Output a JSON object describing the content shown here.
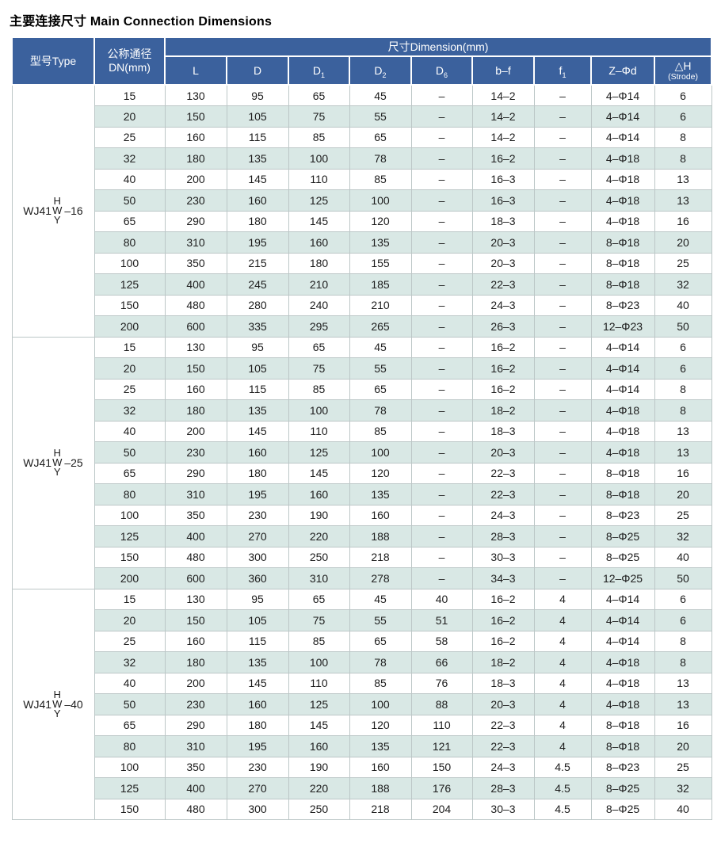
{
  "title": "主要连接尺寸 Main Connection Dimensions",
  "colors": {
    "header_bg": "#3b619d",
    "header_text": "#ffffff",
    "alt_row_bg": "#d9e8e5",
    "border": "#bcc7c7"
  },
  "table": {
    "header": {
      "type_label": "型号Type",
      "dn_label_line1": "公称通径",
      "dn_label_line2": "DN(mm)",
      "dimension_label": "尺寸Dimension(mm)",
      "columns": [
        {
          "label": "L"
        },
        {
          "label": "D"
        },
        {
          "label": "D",
          "sub": "1"
        },
        {
          "label": "D",
          "sub": "2"
        },
        {
          "label": "D",
          "sub": "6"
        },
        {
          "label": "b–f"
        },
        {
          "label": "f",
          "sub": "1"
        },
        {
          "label": "Z–Φd"
        },
        {
          "label": "△H",
          "note": "(Strode)"
        }
      ]
    },
    "groups": [
      {
        "model": {
          "prefix": "WJ41",
          "stack": [
            "H",
            "W",
            "Y"
          ],
          "suffix": "–16"
        },
        "rows": [
          [
            "15",
            "130",
            "95",
            "65",
            "45",
            "–",
            "14–2",
            "–",
            "4–Φ14",
            "6"
          ],
          [
            "20",
            "150",
            "105",
            "75",
            "55",
            "–",
            "14–2",
            "–",
            "4–Φ14",
            "6"
          ],
          [
            "25",
            "160",
            "115",
            "85",
            "65",
            "–",
            "14–2",
            "–",
            "4–Φ14",
            "8"
          ],
          [
            "32",
            "180",
            "135",
            "100",
            "78",
            "–",
            "16–2",
            "–",
            "4–Φ18",
            "8"
          ],
          [
            "40",
            "200",
            "145",
            "110",
            "85",
            "–",
            "16–3",
            "–",
            "4–Φ18",
            "13"
          ],
          [
            "50",
            "230",
            "160",
            "125",
            "100",
            "–",
            "16–3",
            "–",
            "4–Φ18",
            "13"
          ],
          [
            "65",
            "290",
            "180",
            "145",
            "120",
            "–",
            "18–3",
            "–",
            "4–Φ18",
            "16"
          ],
          [
            "80",
            "310",
            "195",
            "160",
            "135",
            "–",
            "20–3",
            "–",
            "8–Φ18",
            "20"
          ],
          [
            "100",
            "350",
            "215",
            "180",
            "155",
            "–",
            "20–3",
            "–",
            "8–Φ18",
            "25"
          ],
          [
            "125",
            "400",
            "245",
            "210",
            "185",
            "–",
            "22–3",
            "–",
            "8–Φ18",
            "32"
          ],
          [
            "150",
            "480",
            "280",
            "240",
            "210",
            "–",
            "24–3",
            "–",
            "8–Φ23",
            "40"
          ],
          [
            "200",
            "600",
            "335",
            "295",
            "265",
            "–",
            "26–3",
            "–",
            "12–Φ23",
            "50"
          ]
        ]
      },
      {
        "model": {
          "prefix": "WJ41",
          "stack": [
            "H",
            "W",
            "Y"
          ],
          "suffix": "–25"
        },
        "rows": [
          [
            "15",
            "130",
            "95",
            "65",
            "45",
            "–",
            "16–2",
            "–",
            "4–Φ14",
            "6"
          ],
          [
            "20",
            "150",
            "105",
            "75",
            "55",
            "–",
            "16–2",
            "–",
            "4–Φ14",
            "6"
          ],
          [
            "25",
            "160",
            "115",
            "85",
            "65",
            "–",
            "16–2",
            "–",
            "4–Φ14",
            "8"
          ],
          [
            "32",
            "180",
            "135",
            "100",
            "78",
            "–",
            "18–2",
            "–",
            "4–Φ18",
            "8"
          ],
          [
            "40",
            "200",
            "145",
            "110",
            "85",
            "–",
            "18–3",
            "–",
            "4–Φ18",
            "13"
          ],
          [
            "50",
            "230",
            "160",
            "125",
            "100",
            "–",
            "20–3",
            "–",
            "4–Φ18",
            "13"
          ],
          [
            "65",
            "290",
            "180",
            "145",
            "120",
            "–",
            "22–3",
            "–",
            "8–Φ18",
            "16"
          ],
          [
            "80",
            "310",
            "195",
            "160",
            "135",
            "–",
            "22–3",
            "–",
            "8–Φ18",
            "20"
          ],
          [
            "100",
            "350",
            "230",
            "190",
            "160",
            "–",
            "24–3",
            "–",
            "8–Φ23",
            "25"
          ],
          [
            "125",
            "400",
            "270",
            "220",
            "188",
            "–",
            "28–3",
            "–",
            "8–Φ25",
            "32"
          ],
          [
            "150",
            "480",
            "300",
            "250",
            "218",
            "–",
            "30–3",
            "–",
            "8–Φ25",
            "40"
          ],
          [
            "200",
            "600",
            "360",
            "310",
            "278",
            "–",
            "34–3",
            "–",
            "12–Φ25",
            "50"
          ]
        ]
      },
      {
        "model": {
          "prefix": "WJ41",
          "stack": [
            "H",
            "W",
            "Y"
          ],
          "suffix": "–40"
        },
        "rows": [
          [
            "15",
            "130",
            "95",
            "65",
            "45",
            "40",
            "16–2",
            "4",
            "4–Φ14",
            "6"
          ],
          [
            "20",
            "150",
            "105",
            "75",
            "55",
            "51",
            "16–2",
            "4",
            "4–Φ14",
            "6"
          ],
          [
            "25",
            "160",
            "115",
            "85",
            "65",
            "58",
            "16–2",
            "4",
            "4–Φ14",
            "8"
          ],
          [
            "32",
            "180",
            "135",
            "100",
            "78",
            "66",
            "18–2",
            "4",
            "4–Φ18",
            "8"
          ],
          [
            "40",
            "200",
            "145",
            "110",
            "85",
            "76",
            "18–3",
            "4",
            "4–Φ18",
            "13"
          ],
          [
            "50",
            "230",
            "160",
            "125",
            "100",
            "88",
            "20–3",
            "4",
            "4–Φ18",
            "13"
          ],
          [
            "65",
            "290",
            "180",
            "145",
            "120",
            "110",
            "22–3",
            "4",
            "8–Φ18",
            "16"
          ],
          [
            "80",
            "310",
            "195",
            "160",
            "135",
            "121",
            "22–3",
            "4",
            "8–Φ18",
            "20"
          ],
          [
            "100",
            "350",
            "230",
            "190",
            "160",
            "150",
            "24–3",
            "4.5",
            "8–Φ23",
            "25"
          ],
          [
            "125",
            "400",
            "270",
            "220",
            "188",
            "176",
            "28–3",
            "4.5",
            "8–Φ25",
            "32"
          ],
          [
            "150",
            "480",
            "300",
            "250",
            "218",
            "204",
            "30–3",
            "4.5",
            "8–Φ25",
            "40"
          ]
        ]
      }
    ]
  }
}
